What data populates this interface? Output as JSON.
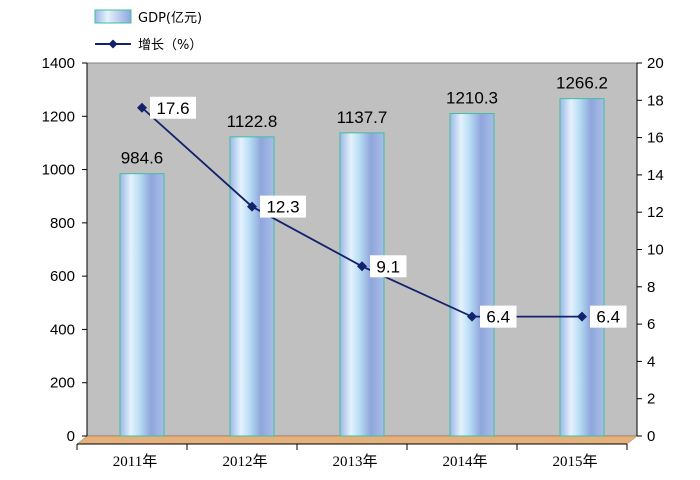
{
  "chart_data": {
    "type": "bar",
    "categories": [
      "2011年",
      "2012年",
      "2013年",
      "2014年",
      "2015年"
    ],
    "series": [
      {
        "name": "GDP(亿元)",
        "type": "bar",
        "axis": "left",
        "values": [
          984.6,
          1122.8,
          1137.7,
          1210.3,
          1266.2
        ]
      },
      {
        "name": "增长（%）",
        "type": "line",
        "axis": "right",
        "values": [
          17.6,
          12.3,
          9.1,
          6.4,
          6.4
        ]
      }
    ],
    "ylim_left": [
      0,
      1400
    ],
    "ylim_right": [
      0,
      20
    ],
    "yticks_left": [
      "0",
      "200",
      "400",
      "600",
      "800",
      "1000",
      "1200",
      "1400"
    ],
    "yticks_right": [
      "0",
      "2",
      "4",
      "6",
      "8",
      "10",
      "12",
      "14",
      "16",
      "18",
      "20"
    ],
    "legend": {
      "position": "top-left",
      "entries": [
        "GDP(亿元)",
        "增长（%）"
      ]
    },
    "colors": {
      "bar_fill": "#a9c8ec",
      "bar_edge": "#3fbfa0",
      "line": "#14216b",
      "plot_bg": "#c0c0c0",
      "floor": "#e4b07c"
    }
  }
}
